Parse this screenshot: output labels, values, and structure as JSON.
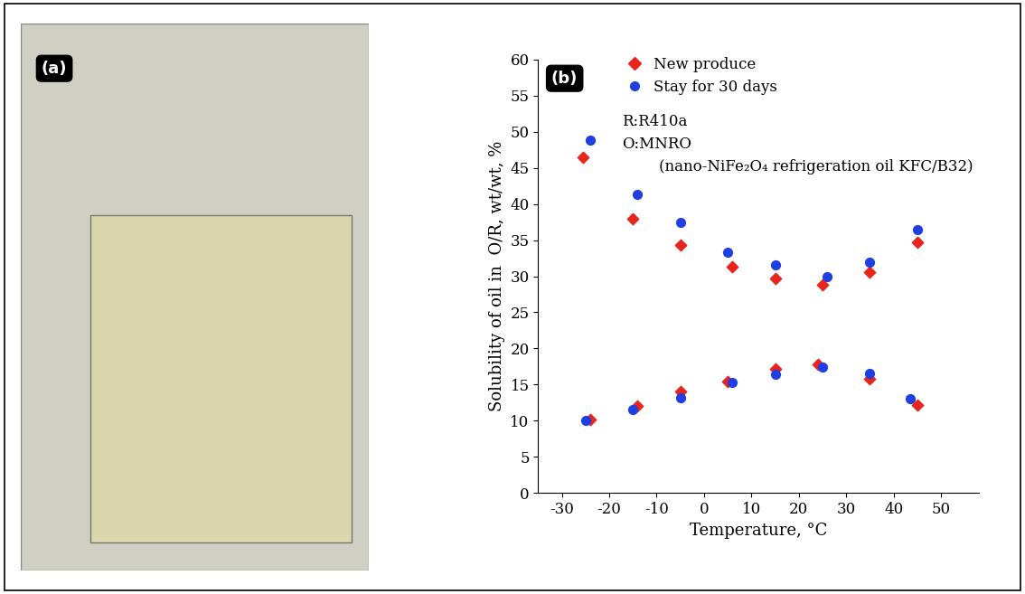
{
  "chart_data": {
    "type": "scatter",
    "panel_label": "(b)",
    "x_label": "Temperature, °C",
    "y_label": "Solubility of oil in  O/R, wt/wt, %",
    "annotations": [
      "R:R410a",
      "O:MNRO",
      "(nano-NiFe₂O₄ refrigeration oil KFC/B32)"
    ],
    "series": [
      {
        "name": "New produce",
        "color": "#e8241c",
        "marker": "diamond",
        "x": [
          -25.5,
          -15,
          -5,
          6,
          15,
          25,
          35,
          45,
          -24,
          -14,
          -5,
          5,
          15,
          24,
          35,
          45
        ],
        "values": [
          46.5,
          38,
          34.3,
          31.3,
          29.7,
          28.8,
          30.6,
          34.7,
          10.2,
          12,
          14,
          15.4,
          17.2,
          17.8,
          15.8,
          12.2
        ]
      },
      {
        "name": "Stay for 30 days",
        "color": "#1f3fe0",
        "marker": "circle",
        "x": [
          -24,
          -14,
          -5,
          5,
          15,
          26,
          35,
          45,
          -25,
          -15,
          -5,
          6,
          15,
          25,
          35,
          43.5
        ],
        "values": [
          48.8,
          41.3,
          37.5,
          33.3,
          31.6,
          30,
          32,
          36.5,
          10,
          11.6,
          13.2,
          15.3,
          16.4,
          17.4,
          16.6,
          13
        ]
      }
    ],
    "xlim": [
      -35,
      58
    ],
    "xticks": [
      -30,
      -20,
      -10,
      0,
      10,
      20,
      30,
      40,
      50
    ],
    "ylim": [
      0,
      60
    ],
    "yticks": [
      0,
      5,
      10,
      15,
      20,
      25,
      30,
      35,
      40,
      45,
      50,
      55,
      60
    ],
    "grid": false,
    "legend": "upper left"
  },
  "photo": {
    "label": "(a)"
  }
}
